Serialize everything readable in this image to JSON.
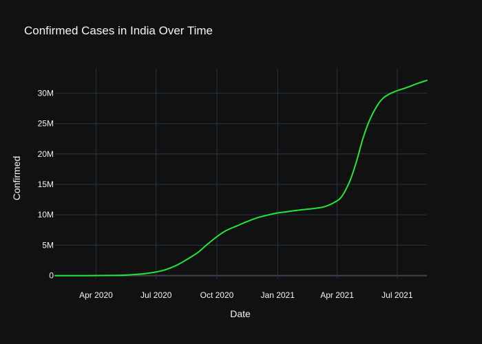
{
  "chart_data": {
    "type": "line",
    "title": "Confirmed Cases in India Over Time",
    "xlabel": "Date",
    "ylabel": "Confirmed",
    "x_range": [
      "2020-01-30",
      "2021-08-15"
    ],
    "ylim": [
      -500000,
      34000000
    ],
    "x_ticks": [
      {
        "date": "2020-04-01",
        "label": "Apr 2020"
      },
      {
        "date": "2020-07-01",
        "label": "Jul 2020"
      },
      {
        "date": "2020-10-01",
        "label": "Oct 2020"
      },
      {
        "date": "2021-01-01",
        "label": "Jan 2021"
      },
      {
        "date": "2021-04-01",
        "label": "Apr 2021"
      },
      {
        "date": "2021-07-01",
        "label": "Jul 2021"
      }
    ],
    "y_ticks": [
      {
        "value": 0,
        "label": "0"
      },
      {
        "value": 5000000,
        "label": "5M"
      },
      {
        "value": 10000000,
        "label": "10M"
      },
      {
        "value": 15000000,
        "label": "15M"
      },
      {
        "value": 20000000,
        "label": "20M"
      },
      {
        "value": 25000000,
        "label": "25M"
      },
      {
        "value": 30000000,
        "label": "30M"
      }
    ],
    "grid": true,
    "series": [
      {
        "color": "#22e83a",
        "points": [
          [
            "2020-01-30",
            1
          ],
          [
            "2020-04-01",
            2000
          ],
          [
            "2020-05-01",
            37000
          ],
          [
            "2020-05-15",
            82000
          ],
          [
            "2020-06-01",
            200000
          ],
          [
            "2020-06-15",
            340000
          ],
          [
            "2020-07-01",
            600000
          ],
          [
            "2020-07-15",
            960000
          ],
          [
            "2020-08-01",
            1700000
          ],
          [
            "2020-08-15",
            2550000
          ],
          [
            "2020-09-01",
            3700000
          ],
          [
            "2020-09-15",
            5000000
          ],
          [
            "2020-10-01",
            6400000
          ],
          [
            "2020-10-15",
            7400000
          ],
          [
            "2020-11-01",
            8200000
          ],
          [
            "2020-11-15",
            8850000
          ],
          [
            "2020-12-01",
            9500000
          ],
          [
            "2020-12-15",
            9900000
          ],
          [
            "2021-01-01",
            10300000
          ],
          [
            "2021-01-15",
            10500000
          ],
          [
            "2021-02-01",
            10750000
          ],
          [
            "2021-02-15",
            10920000
          ],
          [
            "2021-03-01",
            11100000
          ],
          [
            "2021-03-15",
            11400000
          ],
          [
            "2021-04-01",
            12300000
          ],
          [
            "2021-04-08",
            13000000
          ],
          [
            "2021-04-15",
            14300000
          ],
          [
            "2021-04-22",
            16000000
          ],
          [
            "2021-05-01",
            19000000
          ],
          [
            "2021-05-10",
            22500000
          ],
          [
            "2021-05-20",
            25500000
          ],
          [
            "2021-06-01",
            28000000
          ],
          [
            "2021-06-10",
            29200000
          ],
          [
            "2021-06-20",
            29900000
          ],
          [
            "2021-07-01",
            30400000
          ],
          [
            "2021-07-15",
            30900000
          ],
          [
            "2021-08-01",
            31600000
          ],
          [
            "2021-08-15",
            32100000
          ]
        ]
      }
    ]
  }
}
